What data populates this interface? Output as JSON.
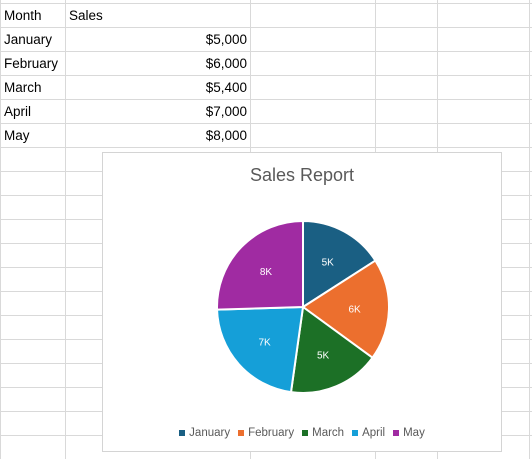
{
  "sheet": {
    "header": {
      "month": "Month",
      "sales": "Sales"
    },
    "rows": [
      {
        "month": "January",
        "sales": "$5,000"
      },
      {
        "month": "February",
        "sales": "$6,000"
      },
      {
        "month": "March",
        "sales": "$5,400"
      },
      {
        "month": "April",
        "sales": "$7,000"
      },
      {
        "month": "May",
        "sales": "$8,000"
      }
    ]
  },
  "chart_data": {
    "type": "pie",
    "title": "Sales Report",
    "categories": [
      "January",
      "February",
      "March",
      "April",
      "May"
    ],
    "values": [
      5000,
      6000,
      5400,
      7000,
      8000
    ],
    "data_labels": [
      "5K",
      "6K",
      "5K",
      "7K",
      "8K"
    ],
    "colors": [
      "#1a5f83",
      "#ec6f2e",
      "#1c7026",
      "#159fd8",
      "#a02ba2"
    ],
    "legend_position": "bottom"
  }
}
